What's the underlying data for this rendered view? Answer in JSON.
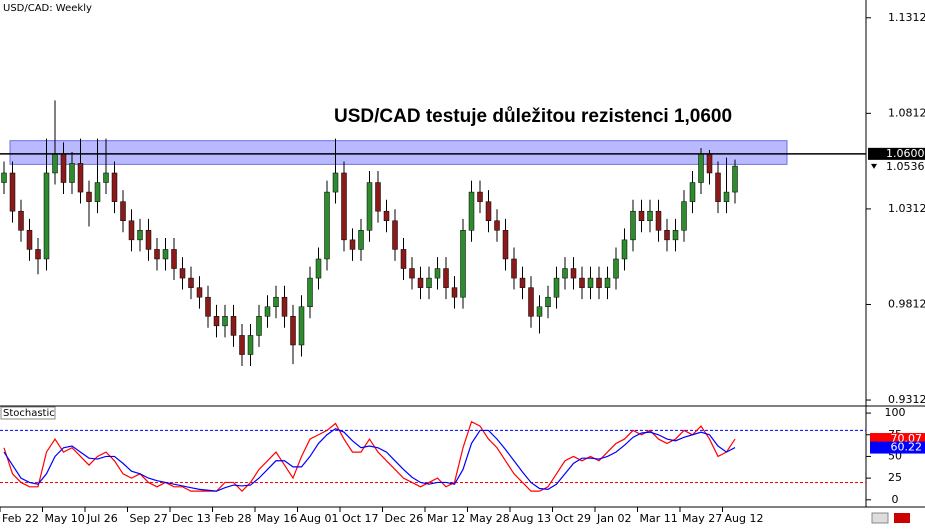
{
  "chart_data": [
    {
      "type": "candlestick",
      "title": "USD/CAD: Weekly",
      "annotation": "USD/CAD testuje důležitou rezistenci 1,0600",
      "categories": [
        "Feb 22",
        null,
        null,
        null,
        null,
        "May 10",
        null,
        null,
        null,
        null,
        "Jul 26",
        null,
        null,
        null,
        null,
        "Sep 27",
        null,
        null,
        null,
        null,
        "Dec 13",
        null,
        null,
        null,
        null,
        "Feb 28",
        null,
        null,
        null,
        null,
        "May 16",
        null,
        null,
        null,
        null,
        "Aug 01",
        null,
        null,
        null,
        null,
        "Oct 17",
        null,
        null,
        null,
        null,
        "Dec 26",
        null,
        null,
        null,
        null,
        "Mar 12",
        null,
        null,
        null,
        null,
        "May 28",
        null,
        null,
        null,
        null,
        "Aug 13",
        null,
        null,
        null,
        null,
        "Oct 29",
        null,
        null,
        null,
        null,
        "Jan 02",
        null,
        null,
        null,
        null,
        "Mar 11",
        null,
        null,
        null,
        null,
        "May 27",
        null,
        null,
        null,
        null,
        "Aug 12",
        null
      ],
      "open": [
        1.045,
        1.05,
        1.03,
        1.02,
        1.01,
        1.005,
        1.05,
        1.06,
        1.045,
        1.055,
        1.04,
        1.035,
        1.045,
        1.05,
        1.035,
        1.025,
        1.015,
        1.02,
        1.01,
        1.005,
        1.01,
        1.0,
        0.995,
        0.99,
        0.985,
        0.975,
        0.97,
        0.975,
        0.965,
        0.955,
        0.965,
        0.975,
        0.98,
        0.985,
        0.975,
        0.96,
        0.98,
        0.995,
        1.005,
        1.04,
        1.05,
        1.015,
        1.01,
        1.02,
        1.045,
        1.03,
        1.025,
        1.01,
        1.0,
        0.995,
        0.99,
        0.995,
        1.0,
        0.99,
        0.985,
        1.02,
        1.04,
        1.035,
        1.025,
        1.02,
        1.005,
        0.995,
        0.99,
        0.975,
        0.98,
        0.985,
        0.995,
        1.0,
        0.995,
        0.99,
        0.995,
        0.99,
        0.995,
        1.005,
        1.015,
        1.03,
        1.025,
        1.03,
        1.02,
        1.015,
        1.02,
        1.035,
        1.045,
        1.06,
        1.05,
        1.035,
        1.04
      ],
      "high": [
        1.056,
        1.056,
        1.036,
        1.026,
        1.016,
        1.068,
        1.088,
        1.066,
        1.061,
        1.068,
        1.046,
        1.068,
        1.068,
        1.056,
        1.041,
        1.031,
        1.026,
        1.026,
        1.016,
        1.016,
        1.016,
        1.006,
        1.001,
        0.996,
        0.991,
        0.981,
        0.981,
        0.981,
        0.971,
        0.971,
        0.981,
        0.986,
        0.991,
        0.991,
        0.981,
        0.986,
        1.001,
        1.011,
        1.046,
        1.068,
        1.056,
        1.021,
        1.026,
        1.051,
        1.051,
        1.036,
        1.031,
        1.016,
        1.006,
        1.001,
        1.001,
        1.006,
        1.006,
        0.996,
        1.026,
        1.046,
        1.046,
        1.041,
        1.031,
        1.026,
        1.011,
        1.001,
        0.996,
        0.986,
        0.991,
        1.001,
        1.006,
        1.006,
        1.001,
        1.001,
        1.001,
        1.001,
        1.011,
        1.021,
        1.036,
        1.036,
        1.036,
        1.036,
        1.026,
        1.026,
        1.041,
        1.051,
        1.063,
        1.062,
        1.056,
        1.058,
        1.057
      ],
      "low": [
        1.039,
        1.024,
        1.014,
        1.004,
        0.997,
        0.999,
        1.044,
        1.039,
        1.039,
        1.034,
        1.022,
        1.029,
        1.039,
        1.029,
        1.019,
        1.009,
        1.009,
        1.004,
        0.999,
        0.999,
        0.994,
        0.989,
        0.984,
        0.979,
        0.969,
        0.964,
        0.964,
        0.959,
        0.949,
        0.949,
        0.959,
        0.969,
        0.974,
        0.969,
        0.95,
        0.954,
        0.974,
        0.989,
        0.999,
        1.034,
        1.009,
        1.004,
        1.004,
        1.014,
        1.024,
        1.019,
        1.004,
        0.994,
        0.989,
        0.984,
        0.984,
        0.989,
        0.984,
        0.979,
        0.979,
        1.014,
        1.029,
        1.019,
        1.014,
        0.999,
        0.989,
        0.984,
        0.969,
        0.966,
        0.974,
        0.979,
        0.989,
        0.989,
        0.984,
        0.984,
        0.984,
        0.984,
        0.989,
        0.999,
        1.009,
        1.019,
        1.019,
        1.014,
        1.009,
        1.009,
        1.014,
        1.029,
        1.039,
        1.044,
        1.029,
        1.029,
        1.034
      ],
      "close": [
        1.05,
        1.03,
        1.02,
        1.01,
        1.005,
        1.05,
        1.06,
        1.045,
        1.055,
        1.04,
        1.035,
        1.045,
        1.05,
        1.035,
        1.025,
        1.015,
        1.02,
        1.01,
        1.005,
        1.01,
        1.0,
        0.995,
        0.99,
        0.985,
        0.975,
        0.97,
        0.975,
        0.965,
        0.955,
        0.965,
        0.975,
        0.98,
        0.985,
        0.975,
        0.96,
        0.98,
        0.995,
        1.005,
        1.04,
        1.05,
        1.015,
        1.01,
        1.02,
        1.045,
        1.03,
        1.025,
        1.01,
        1.0,
        0.995,
        0.99,
        0.995,
        1.0,
        0.99,
        0.985,
        1.02,
        1.04,
        1.035,
        1.025,
        1.02,
        1.005,
        0.995,
        0.99,
        0.975,
        0.98,
        0.985,
        0.995,
        1.0,
        0.995,
        0.99,
        0.995,
        0.99,
        0.995,
        1.005,
        1.015,
        1.03,
        1.025,
        1.03,
        1.02,
        1.015,
        1.02,
        1.035,
        1.045,
        1.06,
        1.05,
        1.035,
        1.04,
        1.0536
      ],
      "up_color": "#2e8b2e",
      "down_color": "#8b1a1a",
      "resistance_zone": [
        1.0545,
        1.0669
      ],
      "zone_color": "#a8a8ff",
      "resistance_line": {
        "value": 1.06,
        "label": "1.0600"
      },
      "ylim": [
        0.9286,
        1.1405
      ],
      "yticks": [
        1.1312,
        1.0812,
        1.0312,
        0.9812,
        0.9312
      ]
    },
    {
      "type": "line",
      "title": "Stochastic",
      "series": [
        {
          "color": "#ff0000",
          "values": [
            60,
            30,
            20,
            15,
            15,
            55,
            70,
            55,
            60,
            50,
            40,
            50,
            55,
            45,
            30,
            25,
            30,
            20,
            15,
            20,
            15,
            15,
            10,
            10,
            10,
            10,
            20,
            20,
            10,
            20,
            35,
            45,
            55,
            40,
            25,
            50,
            70,
            75,
            80,
            88,
            70,
            55,
            55,
            70,
            55,
            45,
            35,
            25,
            20,
            15,
            20,
            25,
            15,
            20,
            60,
            90,
            85,
            70,
            60,
            45,
            30,
            20,
            10,
            10,
            15,
            30,
            45,
            50,
            45,
            50,
            45,
            55,
            65,
            70,
            80,
            75,
            80,
            70,
            65,
            70,
            80,
            75,
            85,
            70,
            50,
            55,
            70.07
          ]
        },
        {
          "color": "#0000ff",
          "values": [
            55,
            40,
            25,
            20,
            18,
            30,
            50,
            60,
            62,
            55,
            48,
            47,
            50,
            50,
            42,
            33,
            30,
            25,
            22,
            20,
            18,
            16,
            14,
            12,
            11,
            10,
            14,
            17,
            16,
            17,
            25,
            35,
            45,
            45,
            38,
            38,
            50,
            65,
            75,
            82,
            78,
            68,
            60,
            62,
            60,
            55,
            45,
            35,
            26,
            20,
            18,
            20,
            20,
            18,
            35,
            65,
            80,
            80,
            70,
            58,
            45,
            32,
            20,
            13,
            12,
            18,
            30,
            42,
            48,
            48,
            47,
            50,
            55,
            63,
            72,
            77,
            78,
            75,
            70,
            68,
            72,
            75,
            78,
            75,
            62,
            55,
            60.22
          ]
        }
      ],
      "levels": [
        {
          "value": 80,
          "color": "#0000ff"
        },
        {
          "value": 20,
          "color": "#ff0000"
        }
      ],
      "ylim": [
        -6,
        107
      ],
      "yticks": [
        100,
        75,
        50,
        25,
        0
      ]
    }
  ]
}
